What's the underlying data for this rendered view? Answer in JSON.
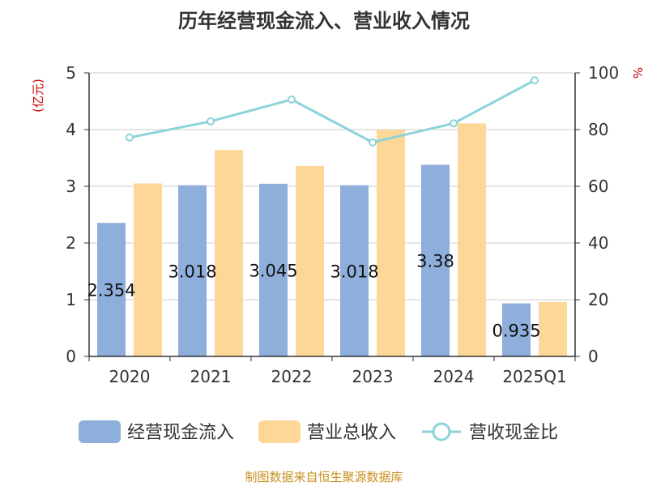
{
  "chart_data": {
    "type": "bar",
    "title": "历年经营现金流入、营业收入情况",
    "categories": [
      "2020",
      "2021",
      "2022",
      "2023",
      "2024",
      "2025Q1"
    ],
    "left_unit": "(亿元)",
    "right_unit": "%",
    "ylim_left": [
      0,
      5
    ],
    "ylim_right": [
      0,
      100
    ],
    "yticks_left": [
      "0",
      "1",
      "2",
      "3",
      "4",
      "5"
    ],
    "yticks_right": [
      "0",
      "20",
      "40",
      "60",
      "80",
      "100"
    ],
    "grid": true,
    "legend_position": "bottom",
    "series": [
      {
        "name": "经营现金流入",
        "kind": "bar",
        "axis": "left",
        "color": "#8eaedb",
        "values": [
          2.354,
          3.018,
          3.045,
          3.018,
          3.38,
          0.935
        ],
        "labels": [
          "2.354",
          "3.018",
          "3.045",
          "3.018",
          "3.38",
          "0.935"
        ]
      },
      {
        "name": "营业总收入",
        "kind": "bar",
        "axis": "left",
        "color": "#fdd797",
        "values": [
          3.05,
          3.64,
          3.36,
          4.0,
          4.11,
          0.96
        ]
      },
      {
        "name": "营收现金比",
        "kind": "line",
        "axis": "right",
        "color": "#8dd3d8",
        "values": [
          77.2,
          82.9,
          90.6,
          75.5,
          82.2,
          97.4
        ]
      }
    ],
    "source": "制图数据来自恒生聚源数据库"
  }
}
